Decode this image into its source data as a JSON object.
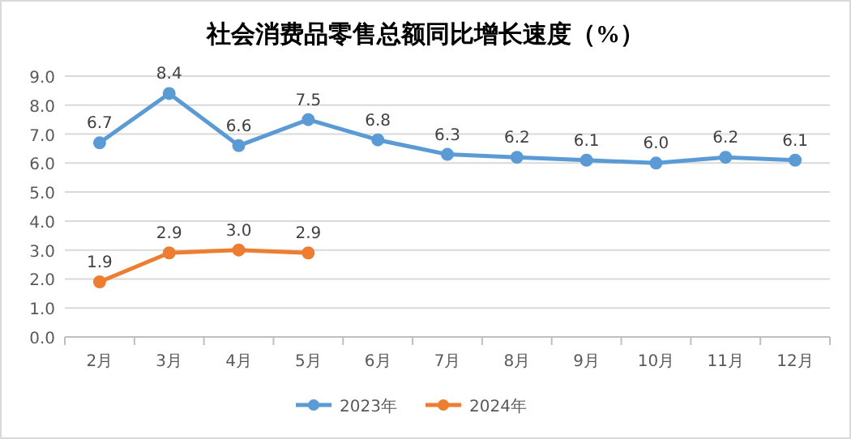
{
  "chart_data": {
    "type": "line",
    "title": "社会消费品零售总额同比增长速度（%）",
    "categories": [
      "2月",
      "3月",
      "4月",
      "5月",
      "6月",
      "7月",
      "8月",
      "9月",
      "10月",
      "11月",
      "12月"
    ],
    "series": [
      {
        "name": "2023年",
        "color": "#5b9bd5",
        "values": [
          6.7,
          8.4,
          6.6,
          7.5,
          6.8,
          6.3,
          6.2,
          6.1,
          6.0,
          6.2,
          6.1
        ],
        "value_labels": [
          "6.7",
          "8.4",
          "6.6",
          "7.5",
          "6.8",
          "6.3",
          "6.2",
          "6.1",
          "6.0",
          "6.2",
          "6.1"
        ]
      },
      {
        "name": "2024年",
        "color": "#ed7d31",
        "values": [
          1.9,
          2.9,
          3.0,
          2.9,
          null,
          null,
          null,
          null,
          null,
          null,
          null
        ],
        "value_labels": [
          "1.9",
          "2.9",
          "3.0",
          "2.9",
          null,
          null,
          null,
          null,
          null,
          null,
          null
        ]
      }
    ],
    "ylim": [
      0,
      9
    ],
    "yticks": [
      {
        "value": 0,
        "label": "0.0"
      },
      {
        "value": 1,
        "label": "1.0"
      },
      {
        "value": 2,
        "label": "2.0"
      },
      {
        "value": 3,
        "label": "3.0"
      },
      {
        "value": 4,
        "label": "4.0"
      },
      {
        "value": 5,
        "label": "5.0"
      },
      {
        "value": 6,
        "label": "6.0"
      },
      {
        "value": 7,
        "label": "7.0"
      },
      {
        "value": 8,
        "label": "8.0"
      },
      {
        "value": 9,
        "label": "9.0"
      }
    ],
    "grid": "y",
    "legend": "bottom",
    "marker": "circle",
    "line_style": "solid"
  }
}
